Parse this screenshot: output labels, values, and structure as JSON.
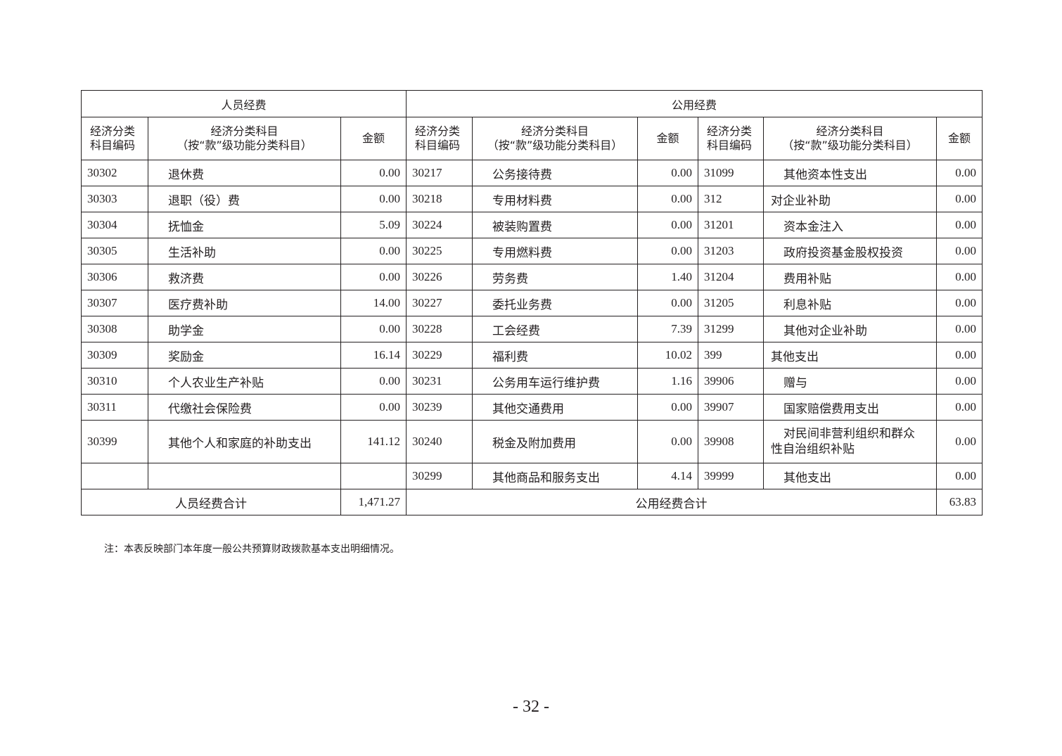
{
  "sections": {
    "personnel": "人员经费",
    "public": "公用经费"
  },
  "headers": {
    "code": "经济分类科目编码",
    "subject_line1": "经济分类科目",
    "subject_line2": "（按“款”级功能分类科目）",
    "amount": "金额"
  },
  "rows": [
    {
      "p": [
        "30302",
        "退休费",
        "0.00"
      ],
      "g": [
        "30217",
        "公务接待费",
        "0.00"
      ],
      "c": [
        "31099",
        "其他资本性支出",
        "0.00",
        true
      ]
    },
    {
      "p": [
        "30303",
        "退职（役）费",
        "0.00"
      ],
      "g": [
        "30218",
        "专用材料费",
        "0.00"
      ],
      "c": [
        "312",
        "对企业补助",
        "0.00",
        false
      ]
    },
    {
      "p": [
        "30304",
        "抚恤金",
        "5.09"
      ],
      "g": [
        "30224",
        "被装购置费",
        "0.00"
      ],
      "c": [
        "31201",
        "资本金注入",
        "0.00",
        true
      ]
    },
    {
      "p": [
        "30305",
        "生活补助",
        "0.00"
      ],
      "g": [
        "30225",
        "专用燃料费",
        "0.00"
      ],
      "c": [
        "31203",
        "政府投资基金股权投资",
        "0.00",
        true
      ]
    },
    {
      "p": [
        "30306",
        "救济费",
        "0.00"
      ],
      "g": [
        "30226",
        "劳务费",
        "1.40"
      ],
      "c": [
        "31204",
        "费用补贴",
        "0.00",
        true
      ]
    },
    {
      "p": [
        "30307",
        "医疗费补助",
        "14.00"
      ],
      "g": [
        "30227",
        "委托业务费",
        "0.00"
      ],
      "c": [
        "31205",
        "利息补贴",
        "0.00",
        true
      ]
    },
    {
      "p": [
        "30308",
        "助学金",
        "0.00"
      ],
      "g": [
        "30228",
        "工会经费",
        "7.39"
      ],
      "c": [
        "31299",
        "其他对企业补助",
        "0.00",
        true
      ]
    },
    {
      "p": [
        "30309",
        "奖励金",
        "16.14"
      ],
      "g": [
        "30229",
        "福利费",
        "10.02"
      ],
      "c": [
        "399",
        "其他支出",
        "0.00",
        false
      ]
    },
    {
      "p": [
        "30310",
        "个人农业生产补贴",
        "0.00"
      ],
      "g": [
        "30231",
        "公务用车运行维护费",
        "1.16"
      ],
      "c": [
        "39906",
        "赠与",
        "0.00",
        true
      ]
    },
    {
      "p": [
        "30311",
        "代缴社会保险费",
        "0.00"
      ],
      "g": [
        "30239",
        "其他交通费用",
        "0.00"
      ],
      "c": [
        "39907",
        "国家赔偿费用支出",
        "0.00",
        true
      ]
    },
    {
      "p": [
        "30399",
        "其他个人和家庭的补助支出",
        "141.12"
      ],
      "g": [
        "30240",
        "税金及附加费用",
        "0.00"
      ],
      "c": [
        "39908",
        "对民间非营利组织和群众性自治组织补贴",
        "0.00",
        true
      ],
      "tall": true
    },
    {
      "p": [
        "",
        "",
        ""
      ],
      "g": [
        "30299",
        "其他商品和服务支出",
        "4.14"
      ],
      "c": [
        "39999",
        "其他支出",
        "0.00",
        true
      ]
    }
  ],
  "totals": {
    "personnel_label": "人员经费合计",
    "personnel_value": "1,471.27",
    "public_label": "公用经费合计",
    "public_value": "63.83"
  },
  "note": "注：本表反映部门本年度一般公共预算财政拨款基本支出明细情况。",
  "page_number": "- 32 -"
}
